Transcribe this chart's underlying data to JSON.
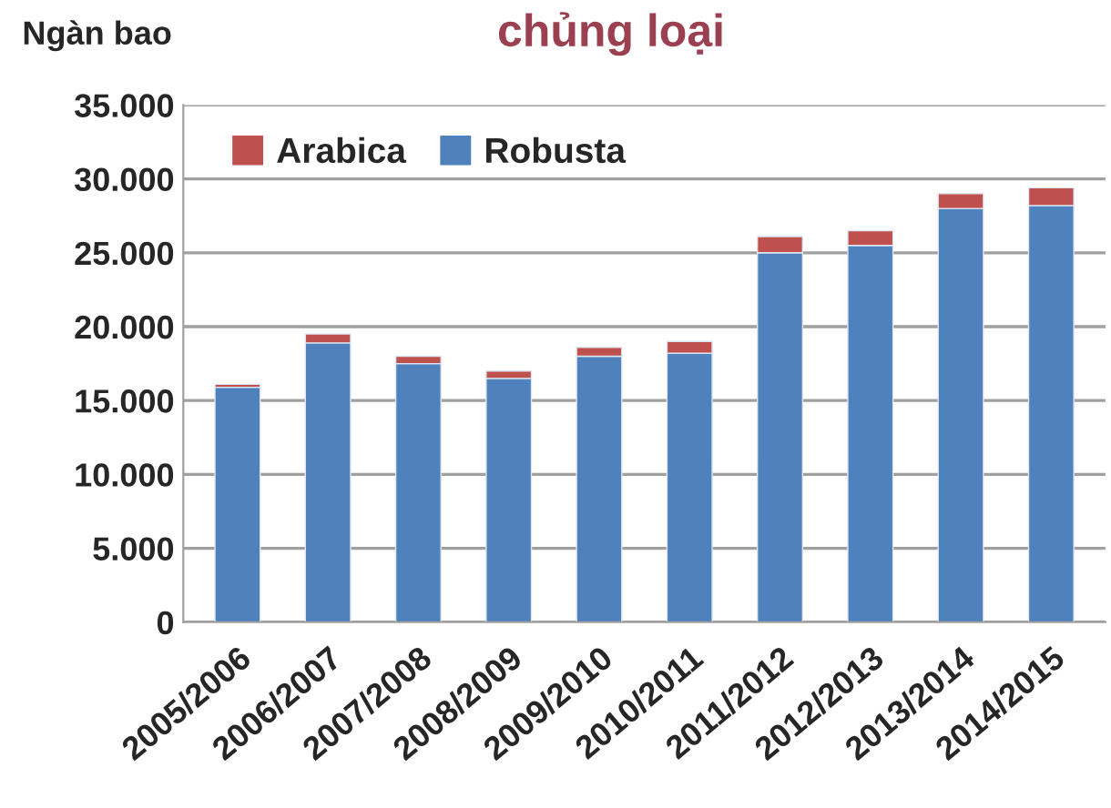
{
  "chart_data": {
    "type": "bar",
    "title": "chủng loại",
    "ylabel": "Ngàn bao",
    "stacked": true,
    "categories": [
      "2005/2006",
      "2006/2007",
      "2007/2008",
      "2008/2009",
      "2009/2010",
      "2010/2011",
      "2011/2012",
      "2012/2013",
      "2013/2014",
      "2014/2015"
    ],
    "series": [
      {
        "name": "Robusta",
        "color": "#4f81bd",
        "values": [
          15900,
          18900,
          17500,
          16500,
          18000,
          18200,
          25000,
          25500,
          28000,
          28200
        ]
      },
      {
        "name": "Arabica",
        "color": "#c0504d",
        "values": [
          200,
          600,
          500,
          500,
          600,
          800,
          1100,
          1000,
          1000,
          1200
        ]
      }
    ],
    "ylim": [
      0,
      35000
    ],
    "yticks": [
      0,
      {
        "value": 5000,
        "label": "5.000"
      },
      {
        "value": 10000,
        "label": "10.000"
      },
      {
        "value": 15000,
        "label": "15.000"
      },
      {
        "value": 20000,
        "label": "20.000"
      },
      {
        "value": 25000,
        "label": "25.000"
      },
      {
        "value": 30000,
        "label": "30.000"
      },
      {
        "value": 35000,
        "label": "35.000"
      }
    ],
    "grid": "y",
    "legend": "top left"
  }
}
